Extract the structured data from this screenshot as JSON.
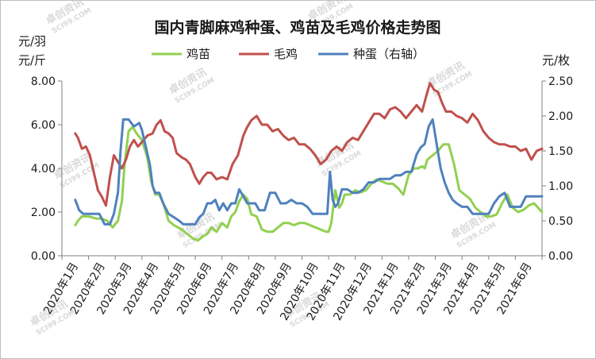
{
  "chart_data": {
    "type": "line",
    "title": "国内青脚麻鸡种蛋、鸡苗及毛鸡价格走势图",
    "ylabel_left": [
      "元/羽",
      "元/斤"
    ],
    "ylabel_right": "元/枚",
    "watermark": "卓创资讯",
    "watermark_url": "SCI99.COM",
    "legend": [
      {
        "name": "鸡苗",
        "color": "#92d050",
        "axis": "left"
      },
      {
        "name": "毛鸡",
        "color": "#c0504d",
        "axis": "left"
      },
      {
        "name": "种蛋（右轴）",
        "color": "#4f81bd",
        "axis": "right"
      }
    ],
    "ylim_left": [
      0,
      8
    ],
    "ylim_right": [
      0,
      2.5
    ],
    "yticks_left": [
      "0.00",
      "2.00",
      "4.00",
      "6.00",
      "8.00"
    ],
    "yticks_right": [
      "0.00",
      "0.50",
      "1.00",
      "1.50",
      "2.00",
      "2.50"
    ],
    "categories": [
      "2020年1月",
      "2020年2月",
      "2020年3月",
      "2020年4月",
      "2020年5月",
      "2020年6月",
      "2020年7月",
      "2020年8月",
      "2020年9月",
      "2020年10月",
      "2020年11月",
      "2020年12月",
      "2021年1月",
      "2021年2月",
      "2021年3月",
      "2021年4月",
      "2021年5月",
      "2021年6月"
    ],
    "series": [
      {
        "name": "鸡苗",
        "color": "#92d050",
        "axis": "left",
        "x": [
          0,
          0.1,
          0.25,
          0.5,
          0.8,
          1.0,
          1.2,
          1.4,
          1.6,
          1.75,
          1.85,
          2.0,
          2.15,
          2.3,
          2.5,
          2.7,
          2.85,
          3.0,
          3.15,
          3.3,
          3.5,
          3.7,
          3.85,
          4.0,
          4.2,
          4.4,
          4.6,
          4.8,
          4.95,
          5.1,
          5.3,
          5.5,
          5.7,
          5.85,
          6.0,
          6.15,
          6.3,
          6.45,
          6.6,
          6.8,
          7.0,
          7.2,
          7.4,
          7.6,
          7.8,
          8.0,
          8.2,
          8.4,
          8.6,
          8.8,
          9.0,
          9.2,
          9.4,
          9.5,
          9.6,
          9.75,
          9.9,
          10.0,
          10.1,
          10.3,
          10.5,
          10.7,
          10.9,
          11.1,
          11.3,
          11.5,
          11.7,
          11.9,
          12.1,
          12.3,
          12.5,
          12.7,
          12.85,
          13.0,
          13.1,
          13.2,
          13.4,
          13.6,
          13.8,
          14.0,
          14.2,
          14.4,
          14.6,
          14.8,
          15.0,
          15.2,
          15.4,
          15.6,
          15.8,
          16.0,
          16.2,
          16.4,
          16.6,
          16.8,
          17.0,
          17.2,
          17.5
        ],
        "values": [
          1.4,
          1.6,
          1.8,
          1.8,
          1.7,
          1.7,
          1.6,
          1.3,
          1.6,
          2.5,
          4.2,
          5.7,
          5.9,
          5.6,
          5.3,
          4.5,
          3.4,
          2.8,
          2.8,
          2.4,
          1.6,
          1.4,
          1.3,
          1.2,
          1.0,
          0.8,
          0.7,
          0.9,
          1.0,
          1.3,
          1.1,
          1.5,
          1.3,
          1.8,
          2.0,
          2.5,
          2.8,
          2.6,
          1.9,
          1.8,
          1.2,
          1.1,
          1.1,
          1.3,
          1.5,
          1.5,
          1.4,
          1.5,
          1.5,
          1.4,
          1.3,
          1.2,
          1.1,
          1.1,
          1.5,
          3.0,
          2.2,
          2.4,
          2.8,
          2.8,
          3.0,
          2.9,
          3.0,
          3.3,
          3.5,
          3.4,
          3.3,
          3.3,
          3.1,
          2.8,
          3.7,
          4.0,
          4.0,
          4.1,
          4.0,
          4.4,
          4.6,
          4.8,
          5.1,
          5.1,
          4.2,
          3.0,
          2.8,
          2.6,
          2.2,
          2.0,
          1.8,
          1.8,
          1.9,
          2.4,
          2.8,
          2.2,
          2.0,
          2.1,
          2.3,
          2.4,
          2.0
        ]
      },
      {
        "name": "毛鸡",
        "color": "#c0504d",
        "axis": "left",
        "x": [
          0,
          0.1,
          0.25,
          0.4,
          0.55,
          0.7,
          0.85,
          1.0,
          1.15,
          1.3,
          1.45,
          1.6,
          1.75,
          1.9,
          2.05,
          2.2,
          2.35,
          2.5,
          2.7,
          2.9,
          3.05,
          3.2,
          3.35,
          3.5,
          3.65,
          3.8,
          4.0,
          4.15,
          4.3,
          4.5,
          4.65,
          4.8,
          4.95,
          5.1,
          5.3,
          5.5,
          5.7,
          5.9,
          6.1,
          6.3,
          6.45,
          6.6,
          6.8,
          7.0,
          7.2,
          7.4,
          7.6,
          7.8,
          8.0,
          8.2,
          8.4,
          8.6,
          8.8,
          9.0,
          9.2,
          9.4,
          9.6,
          9.8,
          10.0,
          10.2,
          10.4,
          10.6,
          10.8,
          11.0,
          11.2,
          11.4,
          11.6,
          11.8,
          12.0,
          12.2,
          12.4,
          12.6,
          12.8,
          13.0,
          13.2,
          13.3,
          13.45,
          13.6,
          13.75,
          13.9,
          14.1,
          14.3,
          14.5,
          14.7,
          14.9,
          15.1,
          15.3,
          15.5,
          15.7,
          15.9,
          16.1,
          16.3,
          16.5,
          16.7,
          16.9,
          17.1,
          17.3,
          17.5
        ],
        "values": [
          5.6,
          5.4,
          4.9,
          5.0,
          4.6,
          3.8,
          3.0,
          2.7,
          2.3,
          3.6,
          4.6,
          4.3,
          4.0,
          4.4,
          5.0,
          5.3,
          5.0,
          5.2,
          5.5,
          5.6,
          6.0,
          6.2,
          5.7,
          5.6,
          5.4,
          4.7,
          4.5,
          4.4,
          4.2,
          3.6,
          3.3,
          3.6,
          3.8,
          3.8,
          3.5,
          3.6,
          3.5,
          4.2,
          4.6,
          5.5,
          5.9,
          6.2,
          6.4,
          6.0,
          6.0,
          5.7,
          5.8,
          5.5,
          5.3,
          5.4,
          5.1,
          5.1,
          4.9,
          4.6,
          4.2,
          4.4,
          4.8,
          5.0,
          4.8,
          5.2,
          5.4,
          5.3,
          5.7,
          6.1,
          6.5,
          6.5,
          6.3,
          6.7,
          6.8,
          6.6,
          6.3,
          6.6,
          6.9,
          6.6,
          7.5,
          7.9,
          7.6,
          7.5,
          7.0,
          6.6,
          6.6,
          6.4,
          6.3,
          6.1,
          6.5,
          6.2,
          5.7,
          5.4,
          5.2,
          5.1,
          5.1,
          5.0,
          5.0,
          4.8,
          4.9,
          4.4,
          4.8,
          4.9
        ]
      },
      {
        "name": "种蛋（右轴）",
        "color": "#4f81bd",
        "axis": "right",
        "x": [
          0,
          0.15,
          0.3,
          0.5,
          0.7,
          0.9,
          1.1,
          1.3,
          1.45,
          1.6,
          1.7,
          1.8,
          1.9,
          2.0,
          2.2,
          2.4,
          2.5,
          2.65,
          2.8,
          2.9,
          3.0,
          3.15,
          3.3,
          3.5,
          3.7,
          3.9,
          4.05,
          4.2,
          4.35,
          4.5,
          4.65,
          4.8,
          4.95,
          5.1,
          5.25,
          5.4,
          5.55,
          5.7,
          5.85,
          6.0,
          6.15,
          6.3,
          6.45,
          6.6,
          6.75,
          6.9,
          7.1,
          7.3,
          7.5,
          7.7,
          7.9,
          8.1,
          8.3,
          8.5,
          8.7,
          8.9,
          9.1,
          9.3,
          9.45,
          9.55,
          9.65,
          9.75,
          9.85,
          10.0,
          10.2,
          10.4,
          10.6,
          10.8,
          11.0,
          11.2,
          11.4,
          11.6,
          11.8,
          12.0,
          12.2,
          12.4,
          12.6,
          12.8,
          12.95,
          13.1,
          13.25,
          13.4,
          13.55,
          13.7,
          13.85,
          14.0,
          14.15,
          14.3,
          14.5,
          14.7,
          14.9,
          15.1,
          15.3,
          15.5,
          15.7,
          15.9,
          16.1,
          16.3,
          16.5,
          16.7,
          16.9,
          17.1,
          17.3,
          17.5
        ],
        "values": [
          0.8,
          0.65,
          0.6,
          0.6,
          0.6,
          0.6,
          0.45,
          0.45,
          0.6,
          0.9,
          1.5,
          1.95,
          1.95,
          1.95,
          1.85,
          1.9,
          1.8,
          1.55,
          1.3,
          1.0,
          0.9,
          0.9,
          0.75,
          0.6,
          0.55,
          0.5,
          0.45,
          0.45,
          0.45,
          0.45,
          0.55,
          0.6,
          0.75,
          0.75,
          0.8,
          0.65,
          0.75,
          0.65,
          0.75,
          0.75,
          0.95,
          0.85,
          0.75,
          0.75,
          0.75,
          0.65,
          0.65,
          0.9,
          0.9,
          0.75,
          0.75,
          0.8,
          0.75,
          0.75,
          0.7,
          0.6,
          0.6,
          0.6,
          0.6,
          1.2,
          0.8,
          0.7,
          0.75,
          0.95,
          0.95,
          0.9,
          0.9,
          0.95,
          1.05,
          1.05,
          1.1,
          1.1,
          1.1,
          1.15,
          1.15,
          1.2,
          1.2,
          1.45,
          1.55,
          1.6,
          1.85,
          1.95,
          1.6,
          1.25,
          1.05,
          0.9,
          0.8,
          0.75,
          0.7,
          0.7,
          0.6,
          0.6,
          0.6,
          0.6,
          0.75,
          0.85,
          0.9,
          0.7,
          0.7,
          0.7,
          0.85,
          0.85,
          0.85,
          0.85
        ]
      }
    ]
  }
}
